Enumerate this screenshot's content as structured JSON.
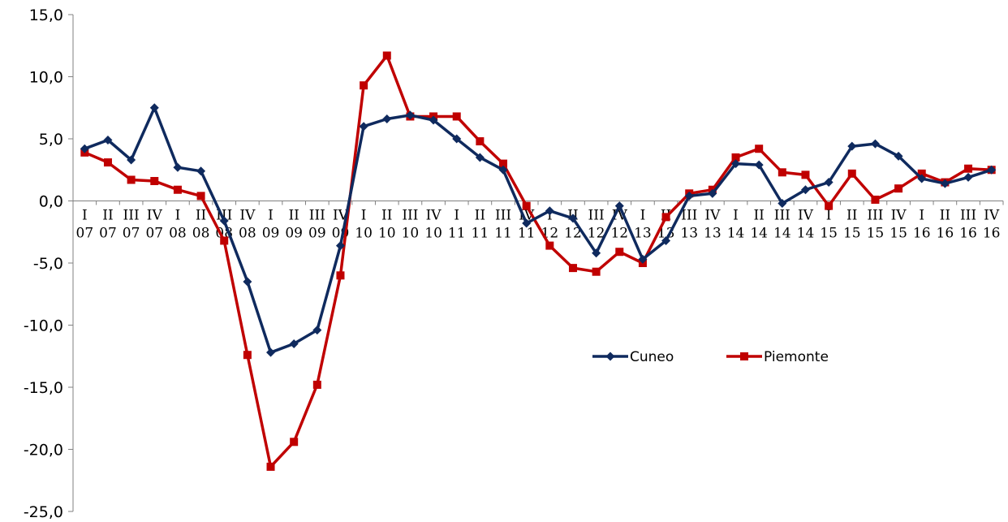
{
  "chart_data": {
    "type": "line",
    "title": "",
    "xlabel": "",
    "ylabel": "",
    "ylim": [
      -25,
      15
    ],
    "yticks": [
      "15,0",
      "10,0",
      "5,0",
      "0,0",
      "-5,0",
      "-10,0",
      "-15,0",
      "-20,0",
      "-25,0"
    ],
    "ytick_values": [
      15,
      10,
      5,
      0,
      -5,
      -10,
      -15,
      -20,
      -25
    ],
    "categories": [
      {
        "q": "I",
        "y": "07"
      },
      {
        "q": "II",
        "y": "07"
      },
      {
        "q": "III",
        "y": "07"
      },
      {
        "q": "IV",
        "y": "07"
      },
      {
        "q": "I",
        "y": "08"
      },
      {
        "q": "II",
        "y": "08"
      },
      {
        "q": "III",
        "y": "08"
      },
      {
        "q": "IV",
        "y": "08"
      },
      {
        "q": "I",
        "y": "09"
      },
      {
        "q": "II",
        "y": "09"
      },
      {
        "q": "III",
        "y": "09"
      },
      {
        "q": "IV",
        "y": "09"
      },
      {
        "q": "I",
        "y": "10"
      },
      {
        "q": "II",
        "y": "10"
      },
      {
        "q": "III",
        "y": "10"
      },
      {
        "q": "IV",
        "y": "10"
      },
      {
        "q": "I",
        "y": "11"
      },
      {
        "q": "II",
        "y": "11"
      },
      {
        "q": "III",
        "y": "11"
      },
      {
        "q": "IV",
        "y": "11"
      },
      {
        "q": "I",
        "y": "12"
      },
      {
        "q": "II",
        "y": "12"
      },
      {
        "q": "III",
        "y": "12"
      },
      {
        "q": "IV",
        "y": "12"
      },
      {
        "q": "I",
        "y": "13"
      },
      {
        "q": "II",
        "y": "13"
      },
      {
        "q": "III",
        "y": "13"
      },
      {
        "q": "IV",
        "y": "13"
      },
      {
        "q": "I",
        "y": "14"
      },
      {
        "q": "II",
        "y": "14"
      },
      {
        "q": "III",
        "y": "14"
      },
      {
        "q": "IV",
        "y": "14"
      },
      {
        "q": "I",
        "y": "15"
      },
      {
        "q": "II",
        "y": "15"
      },
      {
        "q": "III",
        "y": "15"
      },
      {
        "q": "IV",
        "y": "15"
      },
      {
        "q": "I",
        "y": "16"
      },
      {
        "q": "II",
        "y": "16"
      },
      {
        "q": "III",
        "y": "16"
      },
      {
        "q": "IV",
        "y": "16"
      }
    ],
    "series": [
      {
        "name": "Cuneo",
        "color": "#0f2a5e",
        "marker": "diamond",
        "values": [
          4.2,
          4.9,
          3.3,
          7.5,
          2.7,
          2.4,
          -1.6,
          -6.5,
          -12.2,
          -11.5,
          -10.4,
          -3.6,
          6.0,
          6.6,
          6.9,
          6.5,
          5.0,
          3.5,
          2.5,
          -1.8,
          -0.8,
          -1.4,
          -4.2,
          -0.4,
          -4.7,
          -3.2,
          0.4,
          0.6,
          3.0,
          2.9,
          -0.2,
          0.9,
          1.5,
          4.4,
          4.6,
          3.6,
          1.8,
          1.4,
          1.9,
          2.5
        ]
      },
      {
        "name": "Piemonte",
        "color": "#c00000",
        "marker": "square",
        "values": [
          3.9,
          3.1,
          1.7,
          1.6,
          0.9,
          0.4,
          -3.2,
          -12.4,
          -21.4,
          -19.4,
          -14.8,
          -6.0,
          9.3,
          11.7,
          6.8,
          6.8,
          6.8,
          4.8,
          3.0,
          -0.4,
          -3.6,
          -5.4,
          -5.7,
          -4.1,
          -5.0,
          -1.3,
          0.6,
          0.9,
          3.5,
          4.2,
          2.3,
          2.1,
          -0.4,
          2.2,
          0.1,
          1.0,
          2.2,
          1.5,
          2.6,
          2.5
        ]
      }
    ],
    "legend_position": "center-right",
    "grid": false
  }
}
